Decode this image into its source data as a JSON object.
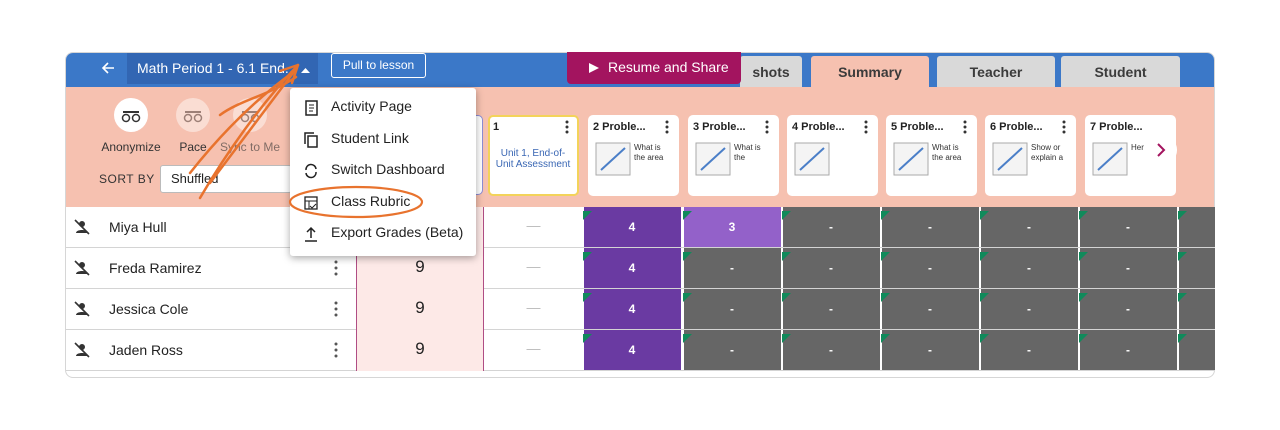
{
  "header": {
    "title": "Math Period 1 - 6.1 End...",
    "pull_button": "Pull to lesson",
    "resume_button": "Resume and Share",
    "tabs": [
      "shots",
      "Summary",
      "Teacher",
      "Student"
    ]
  },
  "toolbar": {
    "controls": [
      "Anonymize",
      "Pace",
      "Sync to Me"
    ],
    "sort_label": "SORT BY",
    "sort_value": "Shuffled"
  },
  "cards": [
    {
      "title": "1",
      "text": "Unit 1, End-of-Unit Assessment"
    },
    {
      "title": "2 Proble...",
      "text": "What is the area"
    },
    {
      "title": "3 Proble...",
      "text": "What is the"
    },
    {
      "title": "4 Proble...",
      "text": null
    },
    {
      "title": "5 Proble...",
      "text": "What is the area"
    },
    {
      "title": "6 Proble...",
      "text": "Show or explain a"
    },
    {
      "title": "7 Proble...",
      "text": "Her the"
    }
  ],
  "menu": [
    "Activity Page",
    "Student Link",
    "Switch Dashboard",
    "Class Rubric",
    "Export Grades (Beta)"
  ],
  "students": [
    {
      "name": "Miya Hull",
      "score": null,
      "dash": "—",
      "cells": [
        "4",
        "3",
        "-",
        "-",
        "-",
        "-",
        "-"
      ]
    },
    {
      "name": "Freda Ramirez",
      "score": "9",
      "dash": "—",
      "cells": [
        "4",
        "-",
        "-",
        "-",
        "-",
        "-",
        "-"
      ]
    },
    {
      "name": "Jessica Cole",
      "score": "9",
      "dash": "—",
      "cells": [
        "4",
        "-",
        "-",
        "-",
        "-",
        "-",
        "-"
      ]
    },
    {
      "name": "Jaden Ross",
      "score": "9",
      "dash": "—",
      "cells": [
        "4",
        "-",
        "-",
        "-",
        "-",
        "-",
        "-"
      ]
    }
  ]
}
